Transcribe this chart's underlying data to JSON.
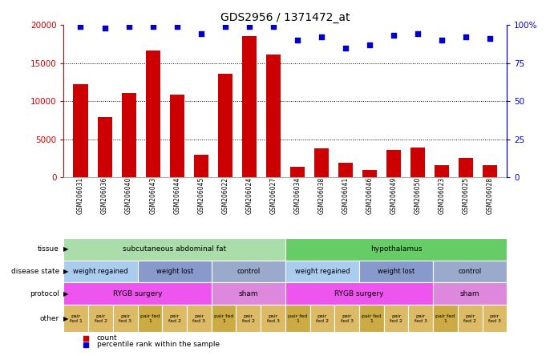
{
  "title": "GDS2956 / 1371472_at",
  "samples": [
    "GSM206031",
    "GSM206036",
    "GSM206040",
    "GSM206043",
    "GSM206044",
    "GSM206045",
    "GSM206022",
    "GSM206024",
    "GSM206027",
    "GSM206034",
    "GSM206038",
    "GSM206041",
    "GSM206046",
    "GSM206049",
    "GSM206050",
    "GSM206023",
    "GSM206025",
    "GSM206028"
  ],
  "counts": [
    12200,
    7900,
    11100,
    16600,
    10800,
    2900,
    13600,
    18500,
    16100,
    1400,
    3800,
    1900,
    1000,
    3600,
    3900,
    1600,
    2500,
    1600
  ],
  "percentiles": [
    99,
    98,
    99,
    99,
    99,
    94,
    99,
    99,
    99,
    90,
    92,
    85,
    87,
    93,
    94,
    90,
    92,
    91
  ],
  "bar_color": "#cc0000",
  "dot_color": "#0000cc",
  "ylim_left": [
    0,
    20000
  ],
  "ylim_right": [
    0,
    100
  ],
  "yticks_left": [
    0,
    5000,
    10000,
    15000,
    20000
  ],
  "yticks_right": [
    0,
    25,
    50,
    75,
    100
  ],
  "yticklabels_right": [
    "0",
    "25",
    "50",
    "75",
    "100%"
  ],
  "tissue_row": {
    "label": "tissue",
    "groups": [
      {
        "text": "subcutaneous abdominal fat",
        "start": 0,
        "end": 9,
        "color": "#aaddaa"
      },
      {
        "text": "hypothalamus",
        "start": 9,
        "end": 18,
        "color": "#66cc66"
      }
    ]
  },
  "disease_row": {
    "label": "disease state",
    "groups": [
      {
        "text": "weight regained",
        "start": 0,
        "end": 3,
        "color": "#aaccee"
      },
      {
        "text": "weight lost",
        "start": 3,
        "end": 6,
        "color": "#8899cc"
      },
      {
        "text": "control",
        "start": 6,
        "end": 9,
        "color": "#99aacc"
      },
      {
        "text": "weight regained",
        "start": 9,
        "end": 12,
        "color": "#aaccee"
      },
      {
        "text": "weight lost",
        "start": 12,
        "end": 15,
        "color": "#8899cc"
      },
      {
        "text": "control",
        "start": 15,
        "end": 18,
        "color": "#99aacc"
      }
    ]
  },
  "protocol_row": {
    "label": "protocol",
    "groups": [
      {
        "text": "RYGB surgery",
        "start": 0,
        "end": 6,
        "color": "#ee55ee"
      },
      {
        "text": "sham",
        "start": 6,
        "end": 9,
        "color": "#dd88dd"
      },
      {
        "text": "RYGB surgery",
        "start": 9,
        "end": 15,
        "color": "#ee55ee"
      },
      {
        "text": "sham",
        "start": 15,
        "end": 18,
        "color": "#dd88dd"
      }
    ]
  },
  "other_row": {
    "label": "other",
    "cells": [
      {
        "text": "pair\nfed 1",
        "color": "#ddbb66"
      },
      {
        "text": "pair\nfed 2",
        "color": "#ddbb66"
      },
      {
        "text": "pair\nfed 3",
        "color": "#ddbb66"
      },
      {
        "text": "pair fed\n1",
        "color": "#ccaa44"
      },
      {
        "text": "pair\nfed 2",
        "color": "#ddbb66"
      },
      {
        "text": "pair\nfed 3",
        "color": "#ddbb66"
      },
      {
        "text": "pair fed\n1",
        "color": "#ccaa44"
      },
      {
        "text": "pair\nfed 2",
        "color": "#ddbb66"
      },
      {
        "text": "pair\nfed 3",
        "color": "#ddbb66"
      },
      {
        "text": "pair fed\n1",
        "color": "#ccaa44"
      },
      {
        "text": "pair\nfed 2",
        "color": "#ddbb66"
      },
      {
        "text": "pair\nfed 3",
        "color": "#ddbb66"
      },
      {
        "text": "pair fed\n1",
        "color": "#ccaa44"
      },
      {
        "text": "pair\nfed 2",
        "color": "#ddbb66"
      },
      {
        "text": "pair\nfed 3",
        "color": "#ddbb66"
      },
      {
        "text": "pair fed\n1",
        "color": "#ccaa44"
      },
      {
        "text": "pair\nfed 2",
        "color": "#ddbb66"
      },
      {
        "text": "pair\nfed 3",
        "color": "#ddbb66"
      }
    ]
  },
  "legend_count_color": "#cc0000",
  "legend_pct_color": "#0000cc",
  "background_color": "#ffffff"
}
